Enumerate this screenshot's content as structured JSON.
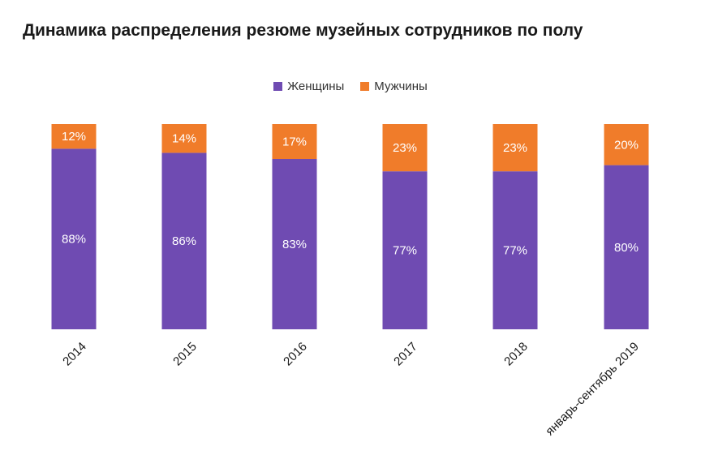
{
  "chart_data": {
    "type": "bar",
    "stacked": true,
    "title": "Динамика распределения резюме музейных сотрудников по полу",
    "categories": [
      "2014",
      "2015",
      "2016",
      "2017",
      "2018",
      "январь-сентябрь 2019"
    ],
    "series": [
      {
        "name": "Женщины",
        "color": "#6f4bb2",
        "values": [
          88,
          86,
          83,
          77,
          77,
          80
        ],
        "labels": [
          "88%",
          "86%",
          "83%",
          "77%",
          "77%",
          "80%"
        ]
      },
      {
        "name": "Мужчины",
        "color": "#f07c2a",
        "values": [
          12,
          14,
          17,
          23,
          23,
          20
        ],
        "labels": [
          "12%",
          "14%",
          "17%",
          "23%",
          "23%",
          "20%"
        ]
      }
    ],
    "ylim": [
      0,
      100
    ],
    "xlabel": "",
    "ylabel": "",
    "legend": "top-center"
  }
}
